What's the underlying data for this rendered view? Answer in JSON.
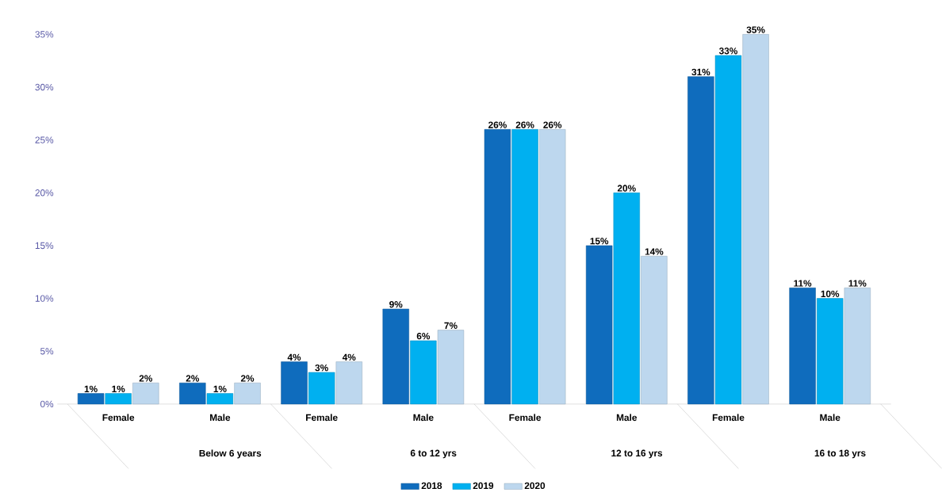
{
  "chart_data": {
    "type": "bar",
    "categories": [
      "Female",
      "Male",
      "Female",
      "Male",
      "Female",
      "Male",
      "Female",
      "Male"
    ],
    "annotations": [
      "Below 6 years",
      "6 to 12 yrs",
      "12 to 16 yrs",
      "16 to 18 yrs"
    ],
    "series": [
      {
        "name": "2018",
        "color": "#0f6cbd",
        "values": [
          1,
          2,
          4,
          9,
          26,
          15,
          31,
          11
        ],
        "value_labels": [
          "1%",
          "2%",
          "4%",
          "9%",
          "26%",
          "15%",
          "31%",
          "11%"
        ]
      },
      {
        "name": "2019",
        "color": "#00b0f0",
        "values": [
          1,
          1,
          3,
          6,
          26,
          20,
          33,
          10
        ],
        "value_labels": [
          "1%",
          "1%",
          "3%",
          "6%",
          "26%",
          "20%",
          "33%",
          "10%"
        ]
      },
      {
        "name": "2020",
        "color": "#bdd7ee",
        "values": [
          2,
          2,
          4,
          7,
          26,
          14,
          35,
          11
        ],
        "value_labels": [
          "2%",
          "2%",
          "4%",
          "7%",
          "26%",
          "14%",
          "35%",
          "11%"
        ]
      }
    ],
    "ylim": [
      0,
      35
    ],
    "yticks": [
      {
        "value": 0,
        "label": "0%"
      },
      {
        "value": 5,
        "label": "5%"
      },
      {
        "value": 10,
        "label": "10%"
      },
      {
        "value": 15,
        "label": "15%"
      },
      {
        "value": 20,
        "label": "20%"
      },
      {
        "value": 25,
        "label": "25%"
      },
      {
        "value": 30,
        "label": "30%"
      },
      {
        "value": 35,
        "label": "35%"
      }
    ],
    "legend": "bottom"
  }
}
